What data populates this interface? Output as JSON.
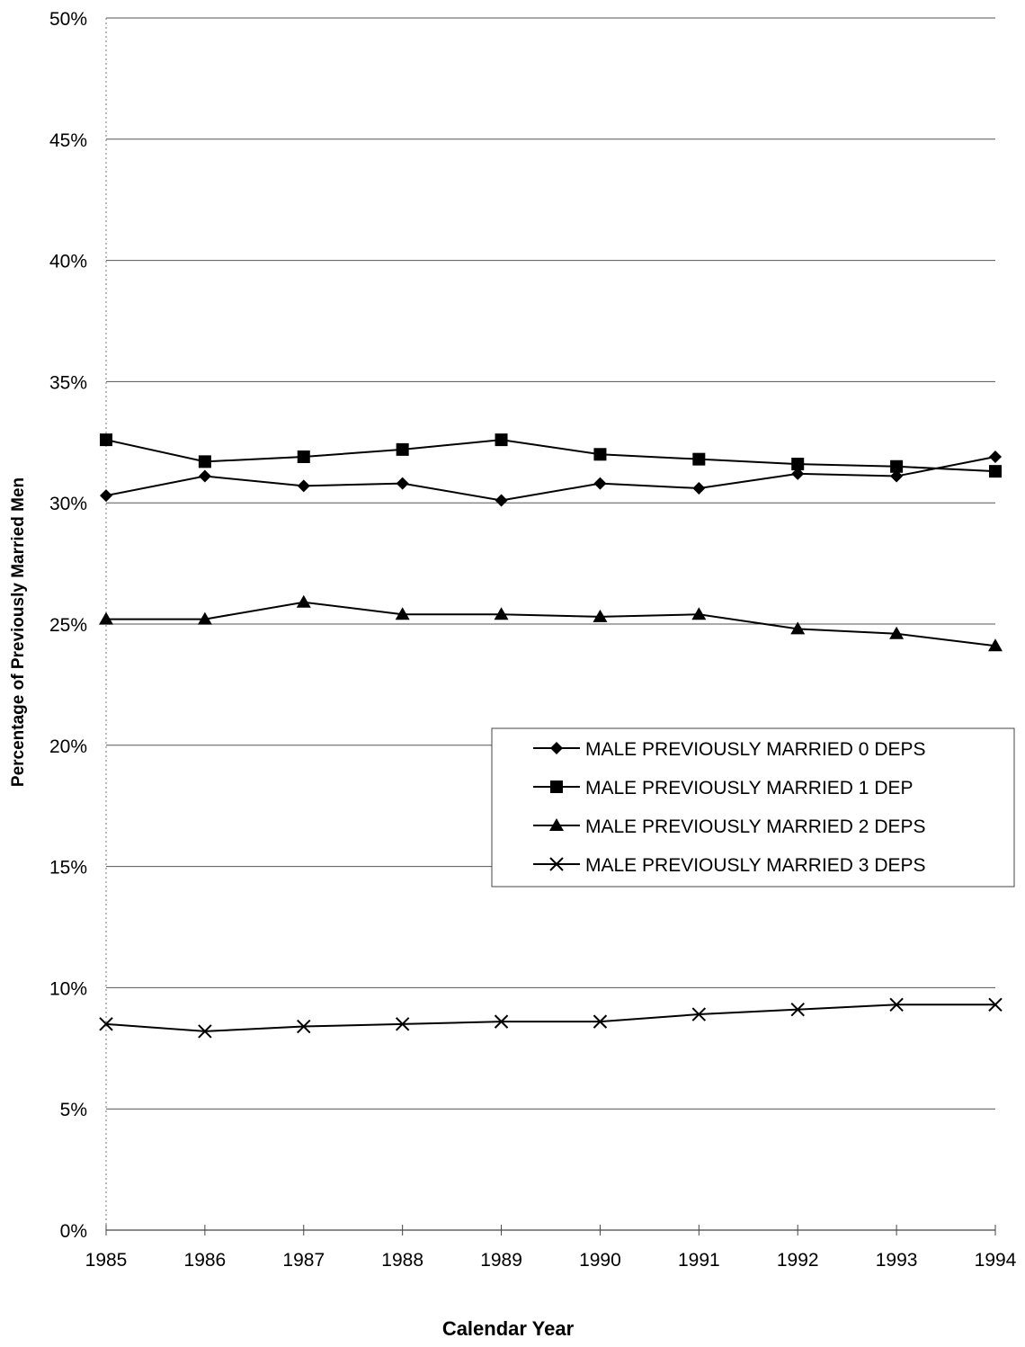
{
  "chart_data": {
    "type": "line",
    "title": "",
    "xlabel": "Calendar Year",
    "ylabel": "Percentage of Previously Married Men",
    "x": [
      1985,
      1986,
      1987,
      1988,
      1989,
      1990,
      1991,
      1992,
      1993,
      1994
    ],
    "x_tick_labels": [
      "1985",
      "1986",
      "1987",
      "1988",
      "1989",
      "1990",
      "1991",
      "1992",
      "1993",
      "1994"
    ],
    "ylim": [
      0,
      50
    ],
    "y_ticks": [
      0,
      5,
      10,
      15,
      20,
      25,
      30,
      35,
      40,
      45,
      50
    ],
    "y_tick_labels": [
      "0%",
      "5%",
      "10%",
      "15%",
      "20%",
      "25%",
      "30%",
      "35%",
      "40%",
      "45%",
      "50%"
    ],
    "grid": "horizontal",
    "legend_position": "center-right",
    "series": [
      {
        "name": "MALE PREVIOUSLY MARRIED 0 DEPS",
        "marker": "diamond",
        "values": [
          30.3,
          31.1,
          30.7,
          30.8,
          30.1,
          30.8,
          30.6,
          31.2,
          31.1,
          31.9
        ]
      },
      {
        "name": "MALE PREVIOUSLY MARRIED 1 DEP",
        "marker": "square",
        "values": [
          32.6,
          31.7,
          31.9,
          32.2,
          32.6,
          32.0,
          31.8,
          31.6,
          31.5,
          31.3
        ]
      },
      {
        "name": "MALE PREVIOUSLY MARRIED 2 DEPS",
        "marker": "triangle",
        "values": [
          25.2,
          25.2,
          25.9,
          25.4,
          25.4,
          25.3,
          25.4,
          24.8,
          24.6,
          24.1
        ]
      },
      {
        "name": "MALE PREVIOUSLY MARRIED 3 DEPS",
        "marker": "x",
        "values": [
          8.5,
          8.2,
          8.4,
          8.5,
          8.6,
          8.6,
          8.9,
          9.1,
          9.3,
          9.3
        ]
      }
    ]
  }
}
